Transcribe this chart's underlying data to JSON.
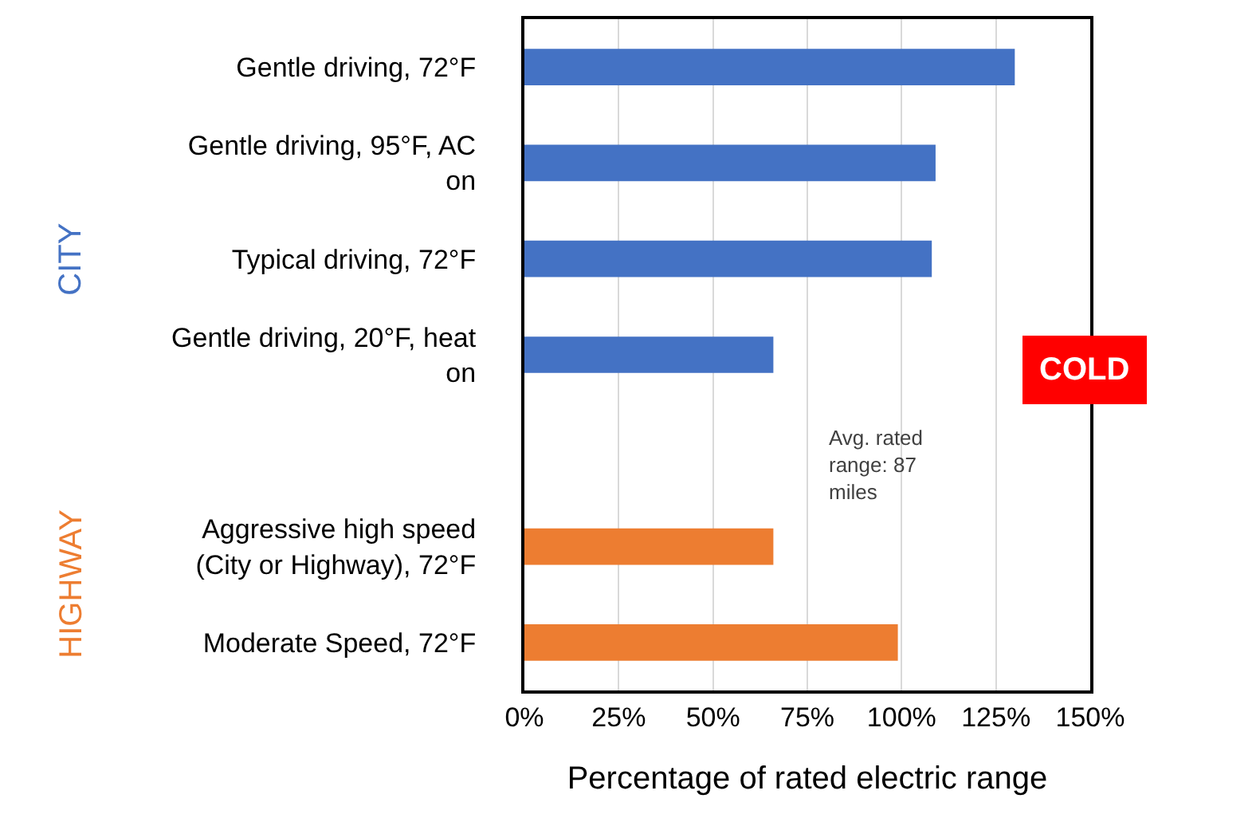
{
  "chart_data": {
    "type": "bar",
    "orientation": "horizontal",
    "xlabel": "Percentage of rated electric range",
    "categories": [
      "Gentle driving, 72°F",
      "Gentle driving, 95°F, AC on",
      "Typical driving, 72°F",
      "Gentle driving, 20°F, heat on",
      null,
      "Aggressive high speed (City or Highway), 72°F",
      "Moderate Speed, 72°F"
    ],
    "values": [
      130,
      109,
      108,
      66,
      null,
      66,
      99
    ],
    "colors": [
      "#4472c4",
      "#4472c4",
      "#4472c4",
      "#4472c4",
      "#4472c4",
      "#ed7d31",
      "#ed7d31"
    ],
    "xlim": [
      0,
      150
    ],
    "xticks": [
      {
        "value": 0,
        "label": "0%"
      },
      {
        "value": 25,
        "label": "25%"
      },
      {
        "value": 50,
        "label": "50%"
      },
      {
        "value": 75,
        "label": "75%"
      },
      {
        "value": 100,
        "label": "100%"
      },
      {
        "value": 125,
        "label": "125%"
      },
      {
        "value": 150,
        "label": "150%"
      }
    ],
    "grid": "x",
    "annotations": [
      "CITY",
      "HIGHWAY",
      "COLD",
      "Avg. rated range: 87 miles"
    ]
  }
}
